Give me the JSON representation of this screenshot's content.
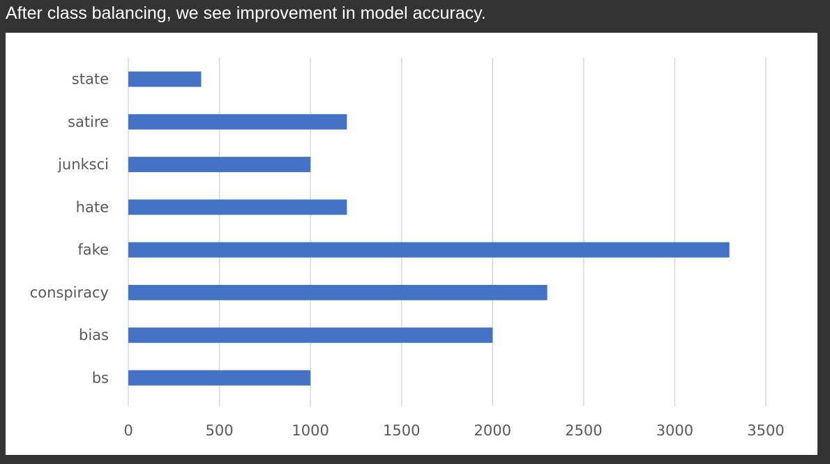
{
  "caption": "After class balancing, we see improvement in model accuracy.",
  "chart_data": {
    "type": "bar",
    "orientation": "horizontal",
    "title": "",
    "xlabel": "",
    "ylabel": "",
    "categories": [
      "state",
      "satire",
      "junksci",
      "hate",
      "fake",
      "conspiracy",
      "bias",
      "bs"
    ],
    "values": [
      400,
      1200,
      1000,
      1200,
      3300,
      2300,
      2000,
      1000
    ],
    "xlim": [
      0,
      3500
    ],
    "xticks": [
      0,
      500,
      1000,
      1500,
      2000,
      2500,
      3000,
      3500
    ],
    "grid": "vertical",
    "legend": "none",
    "bar_color": "#4472C4"
  },
  "colors": {
    "page_background": "#333333",
    "panel_background": "#ffffff",
    "gridline": "#d9d9d9",
    "tick_text": "#595959"
  }
}
